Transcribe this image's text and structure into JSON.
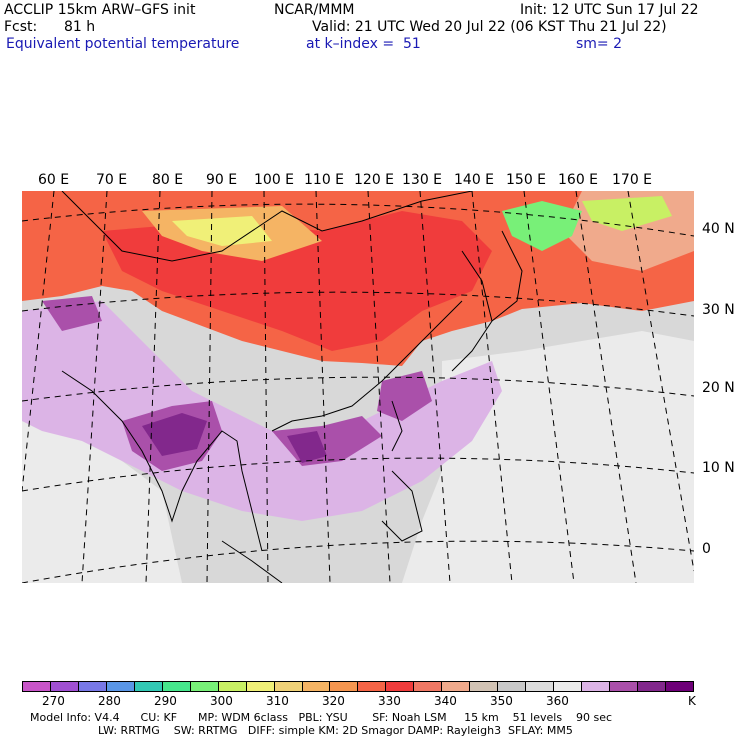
{
  "header": {
    "model": "ACCLIP 15km ARW–GFS init",
    "org": "NCAR/MMM",
    "init": "Init: 12 UTC Sun 17 Jul 22",
    "fcst_label": "Fcst:",
    "fcst_value": "81 h",
    "valid": "Valid: 21 UTC Wed 20 Jul 22 (06 KST Thu 21 Jul 22)",
    "field": "Equivalent potential temperature",
    "level": "at k–index =  51",
    "smooth": "sm= 2"
  },
  "map": {
    "lon_labels": [
      "60 E",
      "70 E",
      "80 E",
      "90 E",
      "100 E",
      "110 E",
      "120 E",
      "130 E",
      "140 E",
      "150 E",
      "160 E",
      "170 E"
    ],
    "lat_labels": [
      "40 N",
      "30 N",
      "20 N",
      "10 N",
      "0"
    ],
    "base_color": "#d8d8d8",
    "ocean_color": "#ebebeb",
    "coast_color": "#000000",
    "grid_color": "#000000"
  },
  "colorbar": {
    "unit": "K",
    "colors": [
      "#c855c8",
      "#a050d2",
      "#7878e6",
      "#5a96e6",
      "#32c8b4",
      "#46e68c",
      "#78f078",
      "#c8f064",
      "#f0f078",
      "#f0d278",
      "#f5b464",
      "#f59650",
      "#f56446",
      "#f03c3c",
      "#f07864",
      "#f0aa8c",
      "#d2c3b4",
      "#c8c8c8",
      "#dcdcdc",
      "#ebebeb",
      "#dcb4e6",
      "#aa50aa",
      "#82288c",
      "#6e0078"
    ],
    "tick_labels": [
      "270",
      "280",
      "290",
      "300",
      "310",
      "320",
      "330",
      "340",
      "350",
      "360"
    ]
  },
  "footer": {
    "line1": "Model Info: V4.4      CU: KF      MP: WDM 6class   PBL: YSU       SF: Noah LSM     15 km    51 levels    90 sec",
    "line2": "LW: RRTMG    SW: RRTMG   DIFF: simple KM: 2D Smagor DAMP: Rayleigh3  SFLAY: MM5"
  }
}
